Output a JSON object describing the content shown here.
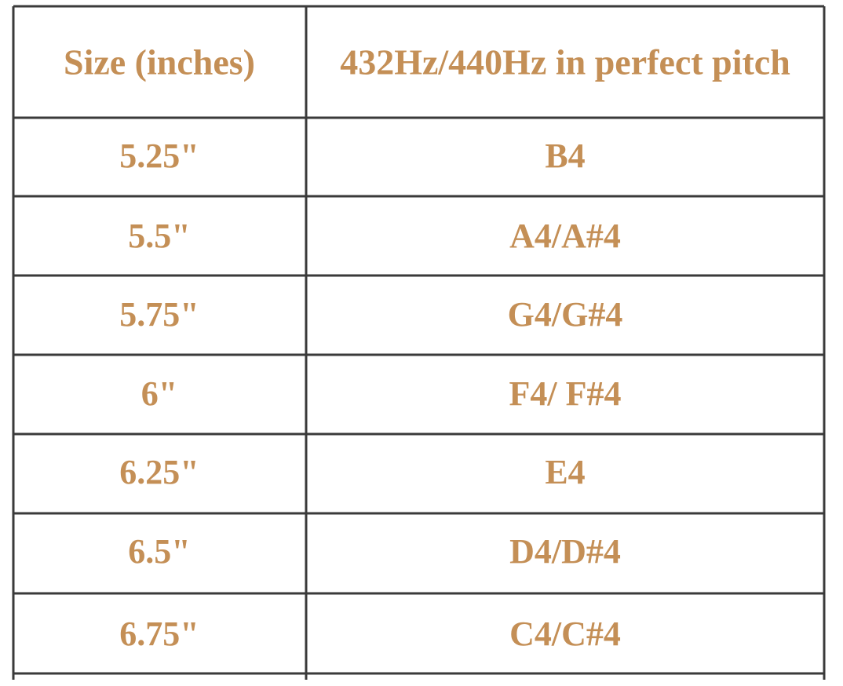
{
  "table": {
    "header": [
      "Size (inches)",
      "432Hz/440Hz in perfect pitch"
    ],
    "rows": [
      [
        "5.25\"",
        "B4"
      ],
      [
        "5.5\"",
        "A4/A#4"
      ],
      [
        "5.75\"",
        "G4/G#4"
      ],
      [
        "6\"",
        "F4/ F#4"
      ],
      [
        "6.25\"",
        "E4"
      ],
      [
        "6.5\"",
        "D4/D#4"
      ],
      [
        "6.75\"",
        "C4/C#4"
      ]
    ]
  }
}
